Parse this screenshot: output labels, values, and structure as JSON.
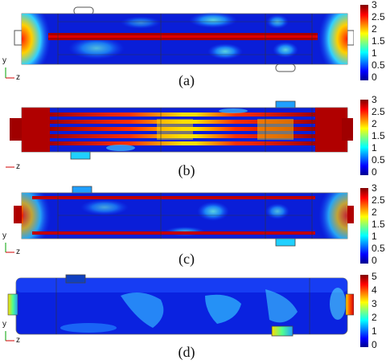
{
  "panels": [
    {
      "label": "(a)",
      "ticks": [
        "3",
        "2.5",
        "2",
        "1.5",
        "1",
        "0.5",
        "0"
      ],
      "axis_y": "y",
      "axis_z": "z"
    },
    {
      "label": "(b)",
      "ticks": [
        "3",
        "2.5",
        "2",
        "1.5",
        "1",
        "0.5",
        "0"
      ],
      "axis_y": "y",
      "axis_z": "z"
    },
    {
      "label": "(c)",
      "ticks": [
        "3",
        "2.5",
        "2",
        "1.5",
        "1",
        "0.5",
        "0"
      ],
      "axis_y": "y",
      "axis_z": "z"
    },
    {
      "label": "(d)",
      "ticks": [
        "5",
        "4",
        "3",
        "2",
        "1",
        "0"
      ],
      "axis_y": "y",
      "axis_z": "z"
    }
  ],
  "colors": {
    "jet_dark_blue": "#00008f",
    "jet_blue": "#0000ff",
    "jet_cyan": "#00ffff",
    "jet_yellow": "#ffff00",
    "jet_red": "#ff0000",
    "jet_dark_red": "#800000"
  }
}
